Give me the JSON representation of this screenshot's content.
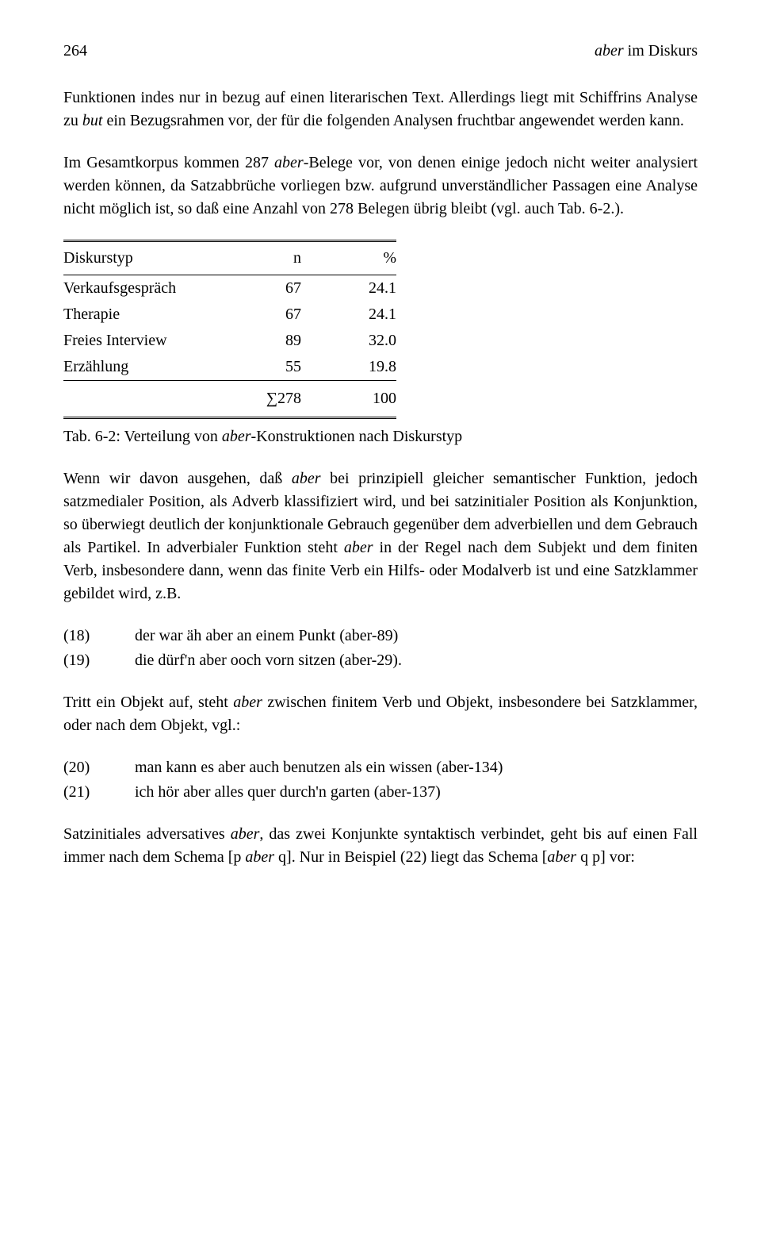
{
  "header": {
    "page_number": "264",
    "running_title_italic": "aber",
    "running_title_rest": " im Diskurs"
  },
  "para1_a": "Funktionen indes nur in bezug auf einen literarischen Text. Allerdings liegt mit Schiffrins Analyse zu ",
  "para1_b_italic": "but",
  "para1_c": " ein Bezugsrahmen vor, der für die folgenden Analysen fruchtbar angewendet werden kann.",
  "para2_a": "Im Gesamtkorpus kommen 287 ",
  "para2_b_italic": "aber",
  "para2_c": "-Belege vor, von denen einige jedoch nicht weiter analysiert werden können, da Satzabbrüche vorliegen bzw. aufgrund unverständlicher Passagen eine Analyse nicht möglich ist, so daß eine Anzahl von 278 Belegen übrig bleibt (vgl. auch Tab. 6-2.).",
  "table": {
    "header": {
      "col1": "Diskurstyp",
      "col2": "n",
      "col3": "%"
    },
    "rows": [
      {
        "label": "Verkaufsgespräch",
        "n": "67",
        "pct": "24.1"
      },
      {
        "label": "Therapie",
        "n": "67",
        "pct": "24.1"
      },
      {
        "label": "Freies Interview",
        "n": "89",
        "pct": "32.0"
      },
      {
        "label": "Erzählung",
        "n": "55",
        "pct": "19.8"
      }
    ],
    "footer": {
      "label": "",
      "n": "∑278",
      "pct": "100"
    }
  },
  "caption_a": "Tab. 6-2: Verteilung von ",
  "caption_b_italic": "aber",
  "caption_c": "-Konstruktionen nach Diskurstyp",
  "para3_a": "Wenn wir davon ausgehen, daß ",
  "para3_b_italic": "aber",
  "para3_c": " bei prinzipiell gleicher semantischer Funktion, jedoch satzmedialer Position, als Adverb klassifiziert wird, und bei satzinitialer Position als Konjunktion, so überwiegt deutlich der konjunktionale Gebrauch gegenüber dem adverbiellen und dem Gebrauch als Partikel. In adverbialer Funktion steht ",
  "para3_d_italic": "aber",
  "para3_e": " in der Regel nach dem Subjekt und dem finiten Verb, insbesondere dann, wenn das finite Verb ein Hilfs- oder Modalverb ist und eine Satzklammer gebildet wird, z.B.",
  "examples1": [
    {
      "num": "(18)",
      "text": "der war äh aber an einem Punkt (aber-89)"
    },
    {
      "num": "(19)",
      "text": "die dürf'n aber ooch vorn sitzen (aber-29)."
    }
  ],
  "para4_a": "Tritt ein Objekt auf, steht ",
  "para4_b_italic": "aber",
  "para4_c": " zwischen finitem Verb und Objekt, insbesondere bei Satzklammer, oder nach dem Objekt, vgl.:",
  "examples2": [
    {
      "num": "(20)",
      "text": "man kann es aber auch benutzen als ein wissen (aber-134)"
    },
    {
      "num": "(21)",
      "text": "ich hör aber alles quer durch'n garten (aber-137)"
    }
  ],
  "para5_a": "Satzinitiales adversatives ",
  "para5_b_italic": "aber",
  "para5_c": ", das zwei Konjunkte syntaktisch verbindet, geht bis auf einen Fall immer nach dem Schema [p ",
  "para5_d_italic": "aber",
  "para5_e": " q]. Nur in Beispiel (22) liegt das Schema [",
  "para5_f_italic": "aber",
  "para5_g": " q p] vor:"
}
